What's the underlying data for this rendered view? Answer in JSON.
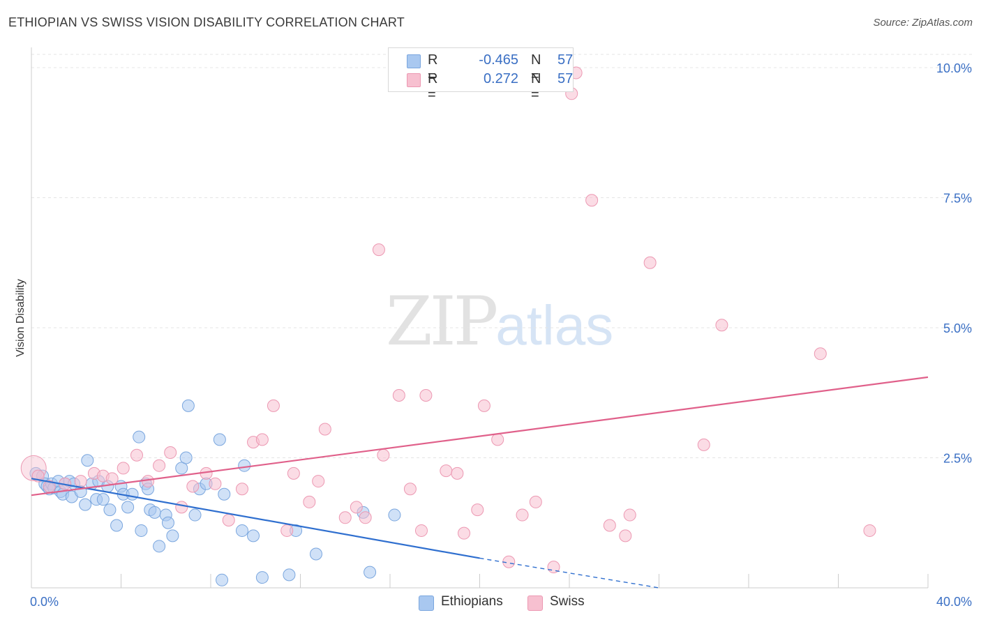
{
  "header": {
    "title": "ETHIOPIAN VS SWISS VISION DISABILITY CORRELATION CHART",
    "source": "Source: ZipAtlas.com"
  },
  "watermark": {
    "zip": "ZIP",
    "atlas": "atlas"
  },
  "legend": {
    "rows": [
      {
        "r_label": "R =",
        "r_value": "-0.465",
        "n_label": "N =",
        "n_value": "57",
        "color": "#a9c8f0",
        "border": "#7aa6de"
      },
      {
        "r_label": "R =",
        "r_value": "0.272",
        "n_label": "N =",
        "n_value": "57",
        "color": "#f7c0d0",
        "border": "#ec98b2"
      }
    ]
  },
  "bottom_legend": {
    "ethiopians": "Ethiopians",
    "swiss": "Swiss"
  },
  "chart_data": {
    "type": "scatter",
    "title": "ETHIOPIAN VS SWISS VISION DISABILITY CORRELATION CHART",
    "xlabel": "",
    "ylabel": "Vision Disability",
    "xlim": [
      0,
      40
    ],
    "ylim": [
      0,
      10.5
    ],
    "x_tick_labels": [
      "0.0%",
      "40.0%"
    ],
    "y_ticks": [
      2.5,
      5.0,
      7.5,
      10.0
    ],
    "y_tick_labels": [
      "2.5%",
      "5.0%",
      "7.5%",
      "10.0%"
    ],
    "grid": true,
    "legend_position": "top-center",
    "series": [
      {
        "name": "Ethiopians",
        "color": "#7aa6de",
        "fill": "#a9c8f0",
        "line_color": "#2f6fcf",
        "trend": {
          "x": [
            0,
            20
          ],
          "y": [
            2.1,
            0.57
          ],
          "dashed_to": [
            28,
            0.0
          ]
        },
        "points": [
          [
            0.2,
            2.2
          ],
          [
            0.5,
            2.15
          ],
          [
            0.6,
            2.0
          ],
          [
            0.7,
            1.95
          ],
          [
            0.8,
            1.9
          ],
          [
            0.9,
            2.0
          ],
          [
            1.0,
            1.92
          ],
          [
            1.2,
            2.05
          ],
          [
            1.3,
            1.85
          ],
          [
            1.4,
            1.8
          ],
          [
            1.5,
            2.0
          ],
          [
            1.7,
            2.05
          ],
          [
            1.8,
            1.75
          ],
          [
            1.9,
            2.0
          ],
          [
            2.2,
            1.85
          ],
          [
            2.4,
            1.6
          ],
          [
            2.5,
            2.45
          ],
          [
            2.7,
            2.0
          ],
          [
            2.9,
            1.7
          ],
          [
            3.0,
            2.05
          ],
          [
            3.2,
            1.7
          ],
          [
            3.4,
            1.95
          ],
          [
            3.5,
            1.5
          ],
          [
            3.8,
            1.2
          ],
          [
            4.0,
            1.95
          ],
          [
            4.1,
            1.8
          ],
          [
            4.3,
            1.55
          ],
          [
            4.5,
            1.8
          ],
          [
            4.8,
            2.9
          ],
          [
            4.9,
            1.1
          ],
          [
            5.1,
            2.0
          ],
          [
            5.2,
            1.9
          ],
          [
            5.3,
            1.5
          ],
          [
            5.5,
            1.45
          ],
          [
            5.7,
            0.8
          ],
          [
            6.0,
            1.4
          ],
          [
            6.1,
            1.25
          ],
          [
            6.3,
            1.0
          ],
          [
            6.7,
            2.3
          ],
          [
            6.9,
            2.5
          ],
          [
            7.0,
            3.5
          ],
          [
            7.3,
            1.4
          ],
          [
            7.5,
            1.9
          ],
          [
            7.8,
            2.0
          ],
          [
            8.4,
            2.85
          ],
          [
            8.5,
            0.15
          ],
          [
            8.6,
            1.8
          ],
          [
            9.4,
            1.1
          ],
          [
            9.5,
            2.35
          ],
          [
            9.9,
            1.0
          ],
          [
            10.3,
            0.2
          ],
          [
            11.5,
            0.25
          ],
          [
            11.8,
            1.1
          ],
          [
            12.7,
            0.65
          ],
          [
            14.8,
            1.45
          ],
          [
            15.1,
            0.3
          ],
          [
            16.2,
            1.4
          ]
        ]
      },
      {
        "name": "Swiss",
        "color": "#ec98b2",
        "fill": "#f7c0d0",
        "line_color": "#e0608a",
        "trend": {
          "x": [
            0,
            40
          ],
          "y": [
            1.78,
            4.05
          ]
        },
        "points": [
          [
            0.1,
            2.3
          ],
          [
            0.3,
            2.15
          ],
          [
            0.8,
            1.95
          ],
          [
            1.5,
            2.0
          ],
          [
            2.2,
            2.05
          ],
          [
            2.8,
            2.2
          ],
          [
            3.2,
            2.15
          ],
          [
            3.6,
            2.1
          ],
          [
            4.1,
            2.3
          ],
          [
            4.7,
            2.55
          ],
          [
            5.2,
            2.05
          ],
          [
            5.7,
            2.35
          ],
          [
            6.2,
            2.6
          ],
          [
            6.7,
            1.55
          ],
          [
            7.2,
            1.95
          ],
          [
            7.8,
            2.2
          ],
          [
            8.2,
            2.0
          ],
          [
            8.8,
            1.3
          ],
          [
            9.4,
            1.9
          ],
          [
            9.9,
            2.8
          ],
          [
            10.3,
            2.85
          ],
          [
            10.8,
            3.5
          ],
          [
            11.4,
            1.1
          ],
          [
            11.7,
            2.2
          ],
          [
            12.4,
            1.65
          ],
          [
            12.8,
            2.05
          ],
          [
            13.1,
            3.05
          ],
          [
            14.0,
            1.35
          ],
          [
            14.5,
            1.55
          ],
          [
            14.9,
            1.35
          ],
          [
            15.5,
            6.5
          ],
          [
            15.7,
            2.55
          ],
          [
            16.4,
            3.7
          ],
          [
            16.9,
            1.9
          ],
          [
            17.4,
            1.1
          ],
          [
            17.6,
            3.7
          ],
          [
            18.5,
            2.25
          ],
          [
            19.0,
            2.2
          ],
          [
            19.3,
            1.05
          ],
          [
            19.9,
            1.5
          ],
          [
            20.2,
            3.5
          ],
          [
            20.8,
            2.85
          ],
          [
            21.3,
            0.5
          ],
          [
            21.9,
            1.4
          ],
          [
            22.5,
            1.65
          ],
          [
            23.3,
            0.4
          ],
          [
            24.1,
            9.5
          ],
          [
            24.3,
            9.9
          ],
          [
            25.0,
            7.45
          ],
          [
            25.8,
            1.2
          ],
          [
            26.5,
            1.0
          ],
          [
            26.7,
            1.4
          ],
          [
            27.6,
            6.25
          ],
          [
            30.0,
            2.75
          ],
          [
            30.8,
            5.05
          ],
          [
            35.2,
            4.5
          ],
          [
            37.4,
            1.1
          ]
        ]
      }
    ]
  }
}
